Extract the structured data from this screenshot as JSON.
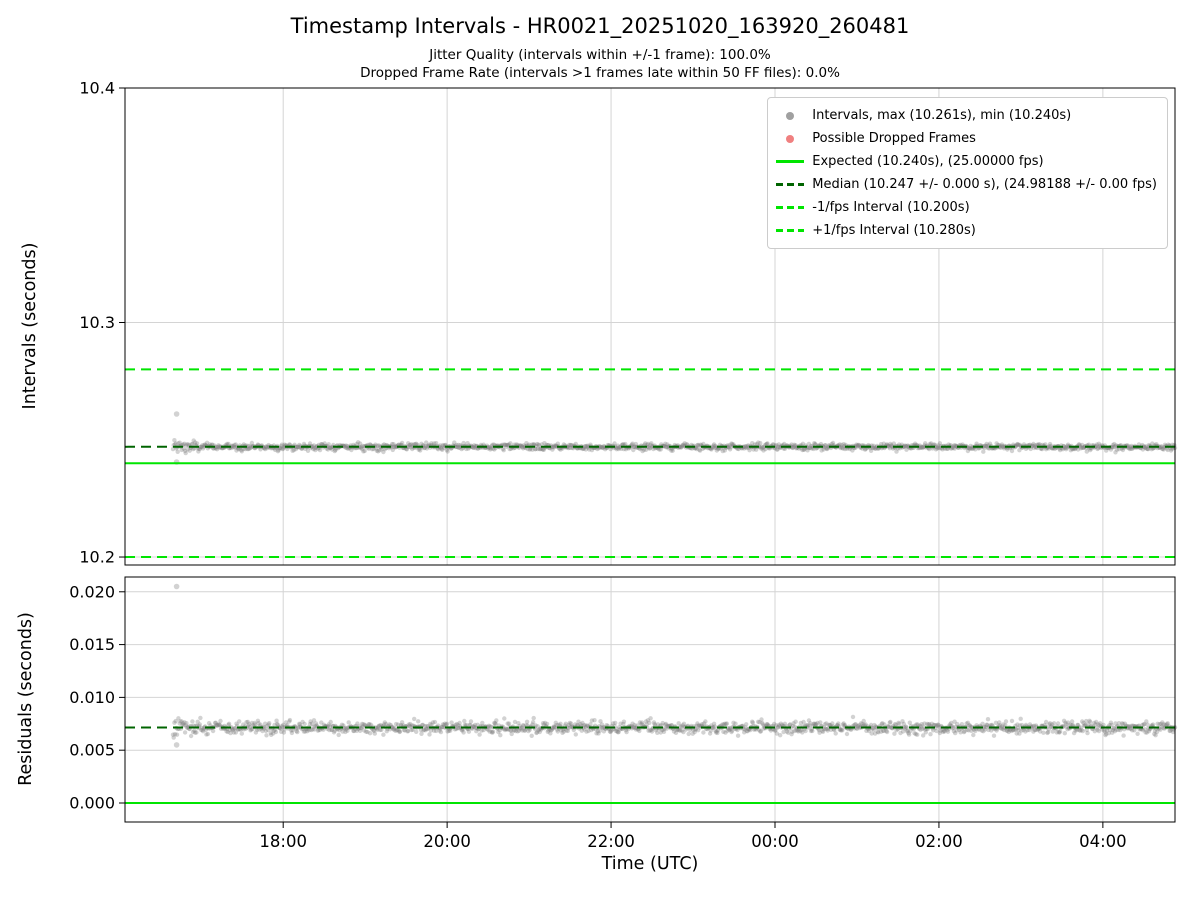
{
  "title": "Timestamp Intervals - HR0021_20251020_163920_260481",
  "subtitle1": "Jitter Quality (intervals within +/-1 frame): 100.0%",
  "subtitle2": "Dropped Frame Rate (intervals >1 frames late within 50 FF files): 0.0%",
  "colors": {
    "expected_line": "#00e500",
    "median_line": "#006400",
    "fps_bound_line": "#00e500",
    "scatter_gray": "#7f7f7f",
    "dropped_red": "#f08080",
    "grid": "#d4d4d4"
  },
  "chart_data": {
    "type": "scatter",
    "title": "Timestamp Intervals - HR0021_20251020_163920_260481",
    "x_axis": {
      "label": "Time (UTC)",
      "ticks": [
        "18:00",
        "20:00",
        "22:00",
        "00:00",
        "02:00",
        "04:00"
      ],
      "tick_hours": [
        18,
        20,
        22,
        24,
        26,
        28
      ],
      "range_hours": [
        16.07,
        28.88
      ],
      "data_start_hour": 16.656,
      "data_end_hour": 28.88,
      "grid": true
    },
    "panels": [
      {
        "name": "intervals",
        "ylabel": "Intervals (seconds)",
        "ylim": [
          10.1966,
          10.4
        ],
        "yticks": [
          10.2,
          10.3,
          10.4
        ],
        "ytick_labels": [
          "10.2",
          "10.3",
          "10.4"
        ],
        "series": {
          "name": "Intervals",
          "median": 10.247,
          "max": 10.261,
          "min": 10.24,
          "jitter": 0.0007,
          "jitter_start": 0.0015,
          "outliers": [
            {
              "x": 16.7,
              "y": 10.261
            },
            {
              "x": 16.7,
              "y": 10.2405
            }
          ]
        },
        "lines": [
          {
            "name": "plus-1fps",
            "value": 10.28,
            "style": "dashed",
            "color": "#00e500"
          },
          {
            "name": "minus-1fps",
            "value": 10.2,
            "style": "dashed",
            "color": "#00e500"
          },
          {
            "name": "expected",
            "value": 10.24,
            "style": "solid",
            "color": "#00e500"
          },
          {
            "name": "median",
            "value": 10.247,
            "style": "dashed",
            "color": "#006400"
          }
        ]
      },
      {
        "name": "residuals",
        "ylabel": "Residuals (seconds)",
        "ylim": [
          -0.0018,
          0.0214
        ],
        "yticks": [
          0.0,
          0.005,
          0.01,
          0.015,
          0.02
        ],
        "ytick_labels": [
          "0.000",
          "0.005",
          "0.010",
          "0.015",
          "0.020"
        ],
        "series": {
          "name": "Residuals",
          "median": 0.00715,
          "jitter": 0.00028,
          "jitter_start": 0.0005,
          "outliers": [
            {
              "x": 16.7,
              "y": 0.0205
            },
            {
              "x": 16.7,
              "y": 0.0055
            }
          ]
        },
        "lines": [
          {
            "name": "zero",
            "value": 0.0,
            "style": "solid",
            "color": "#00e500"
          },
          {
            "name": "median",
            "value": 0.00715,
            "style": "dashed",
            "color": "#006400"
          }
        ]
      }
    ],
    "legend": [
      {
        "label": "Intervals, max (10.261s), min (10.240s)",
        "marker": "dot",
        "color": "#a0a0a0"
      },
      {
        "label": "Possible Dropped Frames",
        "marker": "dot",
        "color": "#f08080"
      },
      {
        "label": "Expected (10.240s), (25.00000 fps)",
        "marker": "line-solid",
        "color": "#00e500"
      },
      {
        "label": "Median (10.247 +/- 0.000 s), (24.98188 +/- 0.00 fps)",
        "marker": "line-dashed",
        "color": "#006400"
      },
      {
        "label": "-1/fps Interval (10.200s)",
        "marker": "line-dashed",
        "color": "#00e500"
      },
      {
        "label": "+1/fps Interval (10.280s)",
        "marker": "line-dashed",
        "color": "#00e500"
      }
    ],
    "stats": {
      "expected_interval_s": 10.24,
      "expected_fps": "25.00000",
      "median_interval_s": 10.247,
      "median_fps": "24.98188",
      "jitter_quality_pct": "100.0%",
      "dropped_frame_rate_pct": "0.0%",
      "ff_file_window": 50
    }
  }
}
